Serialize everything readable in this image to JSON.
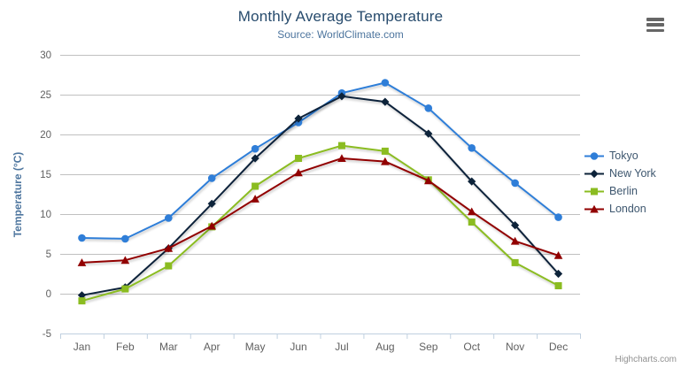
{
  "chart_data": {
    "type": "line",
    "title": "Monthly Average Temperature",
    "subtitle": "Source: WorldClimate.com",
    "xlabel": "",
    "ylabel": "Temperature (°C)",
    "categories": [
      "Jan",
      "Feb",
      "Mar",
      "Apr",
      "May",
      "Jun",
      "Jul",
      "Aug",
      "Sep",
      "Oct",
      "Nov",
      "Dec"
    ],
    "ylim": [
      -5,
      30
    ],
    "yticks": [
      -5,
      0,
      5,
      10,
      15,
      20,
      25,
      30
    ],
    "grid": true,
    "legend_position": "right",
    "series": [
      {
        "name": "Tokyo",
        "color": "#2f7ed8",
        "marker": "circle",
        "values": [
          7.0,
          6.9,
          9.5,
          14.5,
          18.2,
          21.5,
          25.2,
          26.5,
          23.3,
          18.3,
          13.9,
          9.6
        ]
      },
      {
        "name": "New York",
        "color": "#0d233a",
        "marker": "diamond",
        "values": [
          -0.2,
          0.8,
          5.7,
          11.3,
          17.0,
          22.0,
          24.8,
          24.1,
          20.1,
          14.1,
          8.6,
          2.5
        ]
      },
      {
        "name": "Berlin",
        "color": "#8bbc21",
        "marker": "square",
        "values": [
          -0.9,
          0.6,
          3.5,
          8.4,
          13.5,
          17.0,
          18.6,
          17.9,
          14.3,
          9.0,
          3.9,
          1.0
        ]
      },
      {
        "name": "London",
        "color": "#910000",
        "marker": "triangle",
        "values": [
          3.9,
          4.2,
          5.7,
          8.5,
          11.9,
          15.2,
          17.0,
          16.6,
          14.2,
          10.3,
          6.6,
          4.8
        ]
      }
    ]
  },
  "styles": {
    "grid_color": "#C0C0C0",
    "axis_line_color": "#C0D0E0",
    "tick_label_color": "#606060"
  },
  "credits": {
    "label": "Highcharts.com"
  }
}
